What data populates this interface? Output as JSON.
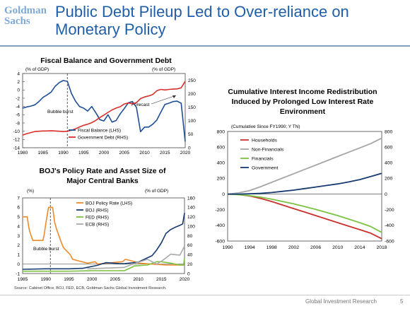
{
  "header": {
    "logo": "Goldman Sachs",
    "title": "Public Debt Pileup Led to Over-reliance on Monetary Policy"
  },
  "footer": {
    "source": "Source: Cabinet Office, BOJ, FED, ECB, Goldman Sachs Global Investment Research.",
    "division": "Global Investment Research",
    "page": "5"
  },
  "chart_data": [
    {
      "type": "line",
      "title": "Fiscal Balance and Government Debt",
      "left_axis_label": "(% of GDP)",
      "right_axis_label": "(% of GDP)",
      "xlim": [
        1980,
        2020
      ],
      "ylim_left": [
        -14,
        4
      ],
      "ylim_right": [
        0,
        275
      ],
      "x_ticks": [
        1980,
        1985,
        1990,
        1995,
        2000,
        2005,
        2010,
        2015,
        2020
      ],
      "y_ticks_left": [
        4,
        2,
        0,
        -2,
        -4,
        -6,
        -8,
        -10,
        -12,
        -14
      ],
      "y_ticks_right": [
        250,
        200,
        150,
        100,
        50,
        0
      ],
      "grid": false,
      "legend_position": "bottom-center",
      "annotations": [
        {
          "text": "Bubble burst",
          "x": 1991
        },
        {
          "text": "Forecast",
          "x": 2016
        }
      ],
      "series": [
        {
          "name": "Fiscal Balance (LHS)",
          "axis": "left",
          "color": "#1f4e96",
          "x": [
            1980,
            1981,
            1982,
            1983,
            1984,
            1985,
            1986,
            1987,
            1988,
            1989,
            1990,
            1991,
            1992,
            1993,
            1994,
            1995,
            1996,
            1997,
            1998,
            1999,
            2000,
            2001,
            2002,
            2003,
            2004,
            2005,
            2006,
            2007,
            2008,
            2009,
            2010,
            2011,
            2012,
            2013,
            2014,
            2015,
            2016,
            2017,
            2018,
            2019,
            2020
          ],
          "values": [
            -4.4,
            -4.1,
            -3.9,
            -3.6,
            -2.8,
            -1.8,
            -1.2,
            -0.5,
            0.9,
            1.8,
            2.3,
            2.1,
            -0.8,
            -2.7,
            -4.0,
            -4.4,
            -5.1,
            -4.0,
            -5.5,
            -7.2,
            -7.5,
            -6.0,
            -7.8,
            -7.4,
            -5.8,
            -4.5,
            -3.1,
            -2.8,
            -4.2,
            -10.1,
            -9.0,
            -9.0,
            -8.3,
            -7.3,
            -5.4,
            -3.5,
            -3.2,
            -2.8,
            -2.7,
            -3.2,
            -12.5
          ]
        },
        {
          "name": "Government Debt (RHS)",
          "axis": "right",
          "color": "#d7302c",
          "x": [
            1980,
            1981,
            1982,
            1983,
            1984,
            1985,
            1986,
            1987,
            1988,
            1989,
            1990,
            1991,
            1992,
            1993,
            1994,
            1995,
            1996,
            1997,
            1998,
            1999,
            2000,
            2001,
            2002,
            2003,
            2004,
            2005,
            2006,
            2007,
            2008,
            2009,
            2010,
            2011,
            2012,
            2013,
            2014,
            2015,
            2016,
            2017,
            2018,
            2019,
            2020
          ],
          "values": [
            47,
            52,
            56,
            60,
            61,
            62,
            62,
            63,
            62,
            61,
            60,
            61,
            65,
            70,
            77,
            83,
            87,
            93,
            101,
            112,
            121,
            131,
            140,
            147,
            152,
            162,
            166,
            163,
            167,
            182,
            188,
            192,
            197,
            211,
            216,
            214,
            216,
            217,
            218,
            222,
            246
          ]
        }
      ]
    },
    {
      "type": "line",
      "title": "BOJ's Policy Rate and Asset Size of Major Central Banks",
      "left_axis_label": "(%)",
      "right_axis_label": "(% of GDP)",
      "xlim": [
        1985,
        2020
      ],
      "ylim_left": [
        -1,
        7
      ],
      "ylim_right": [
        0,
        160
      ],
      "x_ticks": [
        1985,
        1990,
        1995,
        2000,
        2005,
        2010,
        2015,
        2020
      ],
      "y_ticks_left": [
        7,
        6,
        5,
        4,
        3,
        2,
        1,
        0,
        -1
      ],
      "y_ticks_right": [
        160,
        140,
        120,
        100,
        80,
        60,
        40,
        20,
        0
      ],
      "grid": false,
      "legend_position": "top-center",
      "annotations": [
        {
          "text": "Bubble burst",
          "x": 1991
        }
      ],
      "series": [
        {
          "name": "BOJ Policy Rate (LHS)",
          "axis": "left",
          "color": "#ef8a2b",
          "x": [
            1985,
            1986,
            1986.3,
            1986.5,
            1987.2,
            1989.4,
            1989.7,
            1990.0,
            1990.6,
            1991.5,
            1991.9,
            1992.3,
            1993.2,
            1993.8,
            1995.3,
            1995.8,
            1999.0,
            2000.7,
            2001.2,
            2006.6,
            2007.2,
            2008.9,
            2010.0,
            2016.1,
            2020
          ],
          "values": [
            5.0,
            5.0,
            4.0,
            3.5,
            2.5,
            2.5,
            3.25,
            4.25,
            6.0,
            6.0,
            4.5,
            3.75,
            2.5,
            1.75,
            1.0,
            0.5,
            0.1,
            0.25,
            0.0,
            0.25,
            0.5,
            0.3,
            0.1,
            -0.1,
            -0.1
          ]
        },
        {
          "name": "BOJ (RHS)",
          "axis": "right",
          "color": "#163a72",
          "x": [
            1985,
            1990,
            1995,
            1998,
            2001,
            2003,
            2006,
            2007,
            2010,
            2013,
            2014,
            2015,
            2016,
            2017,
            2018,
            2019,
            2019.6,
            2020
          ],
          "values": [
            9,
            10,
            10,
            11,
            17,
            23,
            21,
            21,
            24,
            38,
            50,
            65,
            85,
            93,
            98,
            102,
            105,
            128
          ]
        },
        {
          "name": "FED (RHS)",
          "axis": "right",
          "color": "#7cc242",
          "x": [
            1985,
            1995,
            2000,
            2007,
            2008.8,
            2009,
            2012,
            2014,
            2015,
            2017,
            2019,
            2019.8,
            2020
          ],
          "values": [
            5,
            5,
            6,
            6,
            14,
            16,
            18,
            25,
            25,
            22,
            18,
            18,
            33
          ]
        },
        {
          "name": "ECB (RHS)",
          "axis": "right",
          "color": "#a9a9a9",
          "x": [
            1999,
            2007,
            2008.8,
            2012,
            2013,
            2014,
            2015,
            2016,
            2017,
            2018,
            2019,
            2020
          ],
          "values": [
            10,
            13,
            20,
            30,
            25,
            20,
            26,
            33,
            41,
            40,
            39,
            58
          ]
        }
      ]
    },
    {
      "type": "line",
      "title": "Cumulative Interest Income Redistribution Induced by Prolonged Low Interest Rate Environment",
      "left_axis_label": "(Cumulative Since FY1990; Y TN)",
      "xlim": [
        1990,
        2018
      ],
      "ylim": [
        -600,
        800
      ],
      "x_ticks": [
        1990,
        1994,
        1998,
        2002,
        2006,
        2010,
        2014,
        2018
      ],
      "y_ticks": [
        800,
        600,
        400,
        200,
        0,
        -200,
        -400,
        -600
      ],
      "grid": false,
      "legend_position": "top-left",
      "series": [
        {
          "name": "Households",
          "color": "#c8312c",
          "x": [
            1990,
            1992,
            1994,
            1996,
            1998,
            2000,
            2002,
            2004,
            2006,
            2008,
            2010,
            2012,
            2014,
            2016,
            2018
          ],
          "values": [
            0,
            -5,
            -25,
            -55,
            -95,
            -140,
            -185,
            -230,
            -275,
            -320,
            -365,
            -410,
            -455,
            -500,
            -570
          ]
        },
        {
          "name": "Non-Financials",
          "color": "#a6a6a6",
          "x": [
            1990,
            1992,
            1994,
            1996,
            1998,
            2000,
            2002,
            2004,
            2006,
            2008,
            2010,
            2012,
            2014,
            2016,
            2018
          ],
          "values": [
            0,
            15,
            45,
            95,
            150,
            205,
            260,
            315,
            370,
            425,
            480,
            535,
            590,
            645,
            715
          ]
        },
        {
          "name": "Financials",
          "color": "#7cc242",
          "x": [
            1990,
            1992,
            1994,
            1996,
            1998,
            2000,
            2002,
            2004,
            2006,
            2008,
            2010,
            2012,
            2014,
            2016,
            2018
          ],
          "values": [
            0,
            -8,
            -20,
            -40,
            -65,
            -95,
            -125,
            -160,
            -195,
            -235,
            -275,
            -320,
            -365,
            -415,
            -490
          ]
        },
        {
          "name": "Government",
          "color": "#163a72",
          "x": [
            1990,
            1992,
            1994,
            1996,
            1998,
            2000,
            2002,
            2004,
            2006,
            2008,
            2010,
            2012,
            2014,
            2016,
            2018
          ],
          "values": [
            0,
            0,
            3,
            10,
            20,
            35,
            50,
            70,
            90,
            110,
            130,
            155,
            185,
            225,
            265
          ]
        }
      ]
    }
  ]
}
